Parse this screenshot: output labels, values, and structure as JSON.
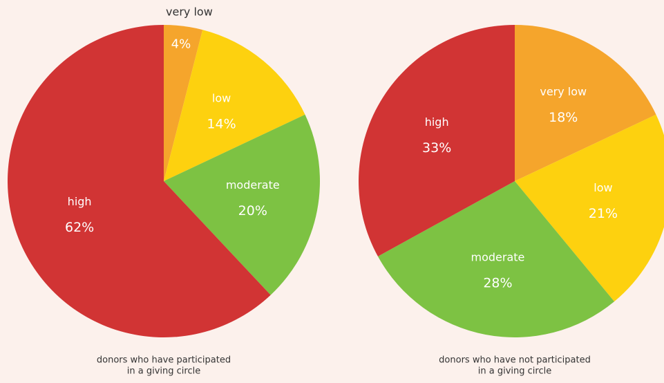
{
  "chart_data": [
    {
      "type": "pie",
      "title": [
        "donors who have participated",
        "in a giving circle"
      ],
      "categories": [
        "very low",
        "low",
        "moderate",
        "high"
      ],
      "values": [
        4,
        14,
        20,
        62
      ],
      "value_labels": [
        "4%",
        "14%",
        "20%",
        "62%"
      ],
      "colors": [
        "#f5a52c",
        "#fdd10f",
        "#7dc243",
        "#d13434"
      ]
    },
    {
      "type": "pie",
      "title": [
        "donors who have not participated",
        "in a giving circle"
      ],
      "categories": [
        "very low",
        "low",
        "moderate",
        "high"
      ],
      "values": [
        18,
        21,
        28,
        33
      ],
      "value_labels": [
        "18%",
        "21%",
        "28%",
        "33%"
      ],
      "colors": [
        "#f5a52c",
        "#fdd10f",
        "#7dc243",
        "#d13434"
      ]
    }
  ]
}
